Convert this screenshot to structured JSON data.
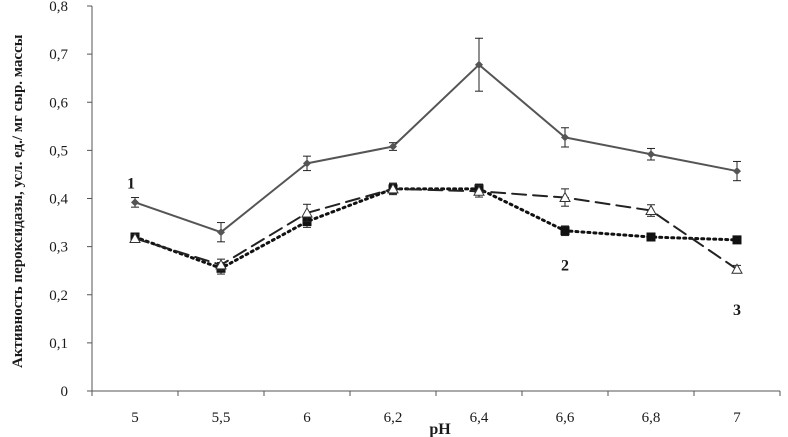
{
  "chart_data": {
    "type": "line",
    "xlabel": "pH",
    "ylabel": "Активность пероксидазы, усл. ед./ мг сыр. массы",
    "categories": [
      "5",
      "5,5",
      "6",
      "6,2",
      "6,4",
      "6,6",
      "6,8",
      "7"
    ],
    "yticks": [
      "0",
      "0,1",
      "0,2",
      "0,3",
      "0,4",
      "0,5",
      "0,6",
      "0,7",
      "0,8"
    ],
    "ylim": [
      0,
      0.8
    ],
    "grid": false,
    "series": [
      {
        "name": "1",
        "marker": "diamond",
        "line_style": "solid",
        "color": "#555555",
        "values": [
          0.392,
          0.33,
          0.473,
          0.508,
          0.678,
          0.527,
          0.492,
          0.457
        ],
        "errors": [
          0.01,
          0.02,
          0.015,
          0.008,
          0.055,
          0.02,
          0.012,
          0.02
        ]
      },
      {
        "name": "2",
        "marker": "square",
        "line_style": "dotted",
        "color": "#111111",
        "values": [
          0.32,
          0.255,
          0.352,
          0.42,
          0.42,
          0.333,
          0.32,
          0.314
        ],
        "errors": [
          0.006,
          0.012,
          0.012,
          0.01,
          0.01,
          0.01,
          0.006,
          0.006
        ]
      },
      {
        "name": "3",
        "marker": "triangle",
        "line_style": "dashed",
        "color": "#222222",
        "values": [
          0.317,
          0.262,
          0.37,
          0.42,
          0.415,
          0.402,
          0.375,
          0.253
        ],
        "errors": [
          0.008,
          0.012,
          0.018,
          0.012,
          0.012,
          0.018,
          0.012,
          0.008
        ]
      }
    ]
  }
}
